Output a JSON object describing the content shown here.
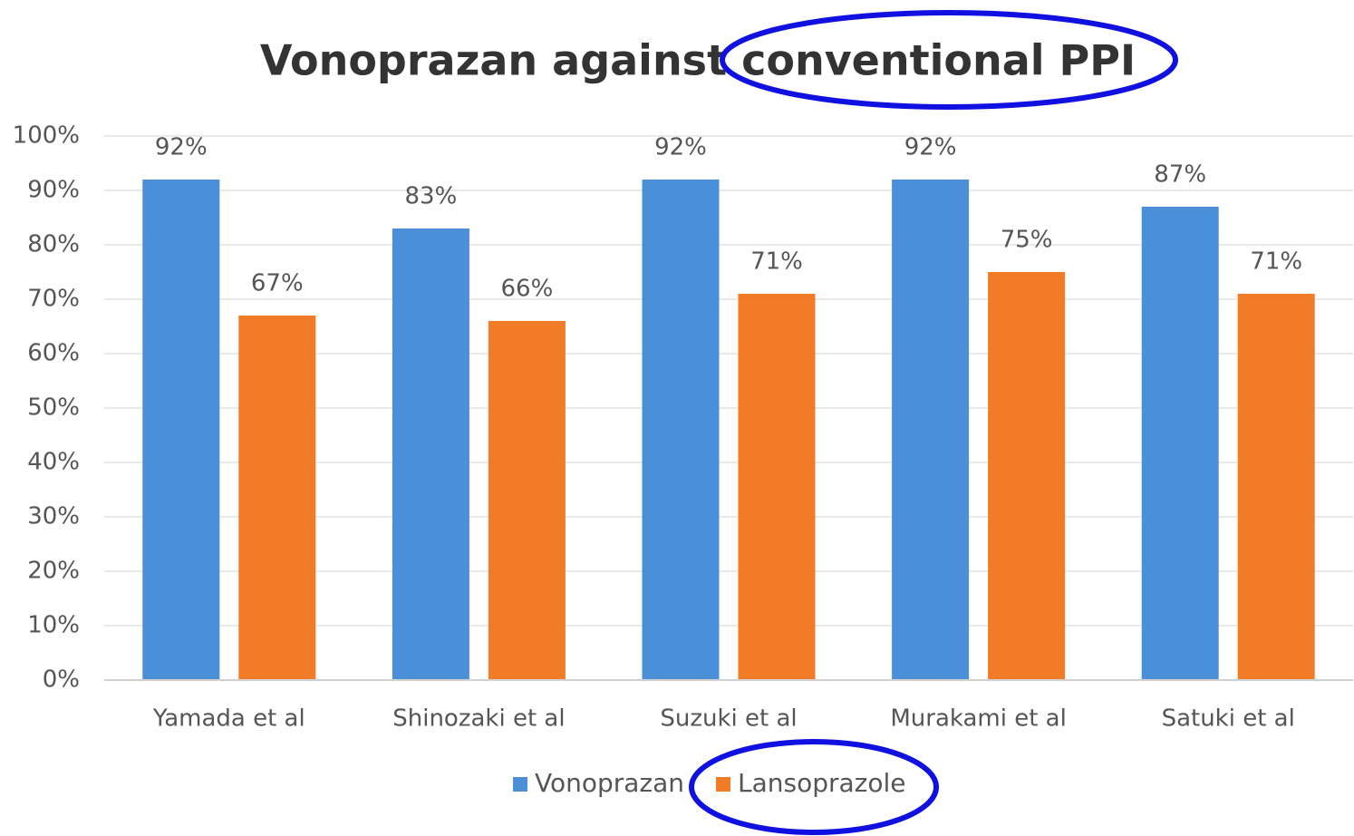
{
  "chart_data": {
    "type": "bar",
    "title": "Vonoprazan against conventional PPI",
    "categories": [
      "Yamada et al",
      "Shinozaki et al",
      "Suzuki et al",
      "Murakami  et al",
      "Satuki et al"
    ],
    "series": [
      {
        "name": "Vonoprazan",
        "color": "#4a8fd8",
        "values": [
          92,
          83,
          92,
          92,
          87
        ],
        "value_labels": [
          "92%",
          "83%",
          "92%",
          "92%",
          "87%"
        ]
      },
      {
        "name": "Lansoprazole",
        "color": "#f27b28",
        "values": [
          67,
          66,
          71,
          75,
          71
        ],
        "value_labels": [
          "67%",
          "66%",
          "71%",
          "75%",
          "71%"
        ]
      }
    ],
    "ylim": [
      0,
      100
    ],
    "yticks": [
      {
        "value": 0,
        "label": "0%"
      },
      {
        "value": 10,
        "label": "10%"
      },
      {
        "value": 20,
        "label": "20%"
      },
      {
        "value": 30,
        "label": "30%"
      },
      {
        "value": 40,
        "label": "40%"
      },
      {
        "value": 50,
        "label": "50%"
      },
      {
        "value": 60,
        "label": "60%"
      },
      {
        "value": 70,
        "label": "70%"
      },
      {
        "value": 80,
        "label": "80%"
      },
      {
        "value": 90,
        "label": "90%"
      },
      {
        "value": 100,
        "label": "100%"
      }
    ],
    "grid": true,
    "legend": "bottom"
  }
}
